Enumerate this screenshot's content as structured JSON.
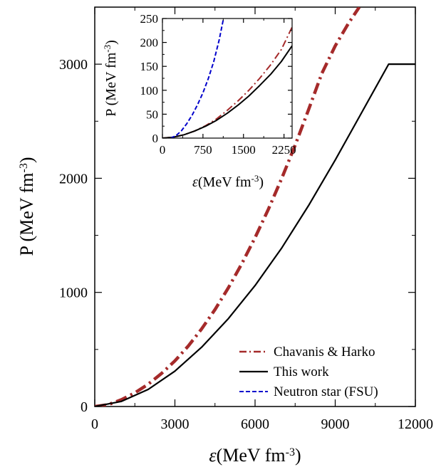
{
  "chart_data": [
    {
      "id": "main",
      "type": "line",
      "xlabel": "ε(MeV fm⁻³)",
      "ylabel": "P (MeV fm⁻³)",
      "xlim": [
        0,
        12000
      ],
      "ylim": [
        0,
        3500
      ],
      "xticks": [
        0,
        3000,
        6000,
        9000,
        12000
      ],
      "yticks": [
        0,
        1000,
        2000,
        3000
      ],
      "grid": false,
      "legend_position": "bottom-right",
      "series": [
        {
          "name": "Chavanis & Harko",
          "color": "#a52a2a",
          "style": "dash-dot-thick",
          "x": [
            0,
            500,
            1000,
            1500,
            2000,
            2500,
            3000,
            3500,
            4000,
            4500,
            5000,
            5500,
            6000,
            6500,
            7000,
            7500,
            8000,
            8500,
            9000,
            9500,
            9900
          ],
          "y": [
            0,
            16,
            60,
            120,
            195,
            290,
            400,
            530,
            680,
            850,
            1040,
            1250,
            1480,
            1730,
            2000,
            2290,
            2600,
            2920,
            3160,
            3360,
            3500
          ]
        },
        {
          "name": "This work",
          "color": "#000000",
          "style": "solid",
          "x": [
            0,
            1000,
            2000,
            3000,
            4000,
            5000,
            6000,
            7000,
            8000,
            9000,
            10000,
            11000,
            12000
          ],
          "y": [
            0,
            45,
            150,
            310,
            520,
            770,
            1060,
            1390,
            1760,
            2160,
            2580,
            3000,
            3000
          ]
        },
        {
          "name": "Neutron star (FSU)",
          "color": "#0000cc",
          "style": "dashed",
          "x": [],
          "y": []
        }
      ]
    },
    {
      "id": "inset",
      "type": "line",
      "xlabel": "ε(MeV fm⁻³)",
      "ylabel": "P (MeV fm⁻³)",
      "xlim": [
        0,
        2400
      ],
      "ylim": [
        0,
        250
      ],
      "xticks": [
        0,
        750,
        1500,
        2250
      ],
      "yticks": [
        0,
        50,
        100,
        150,
        200,
        250
      ],
      "grid": false,
      "series": [
        {
          "name": "Chavanis & Harko",
          "color": "#a52a2a",
          "style": "dash-dot",
          "x": [
            0,
            200,
            400,
            600,
            800,
            1000,
            1200,
            1400,
            1600,
            1800,
            2000,
            2200,
            2400
          ],
          "y": [
            0,
            2,
            7,
            15,
            26,
            40,
            58,
            78,
            100,
            125,
            153,
            185,
            232
          ]
        },
        {
          "name": "This work",
          "color": "#000000",
          "style": "solid",
          "x": [
            0,
            200,
            400,
            600,
            800,
            1000,
            1200,
            1400,
            1600,
            1800,
            2000,
            2200,
            2400
          ],
          "y": [
            0,
            2,
            7,
            15,
            25,
            37,
            52,
            69,
            88,
            110,
            133,
            160,
            193
          ]
        },
        {
          "name": "Neutron star (FSU)",
          "color": "#0000cc",
          "style": "dashed",
          "x": [
            150,
            250,
            350,
            450,
            550,
            650,
            750,
            850,
            950,
            1050,
            1130
          ],
          "y": [
            0,
            5,
            15,
            30,
            48,
            70,
            95,
            125,
            160,
            205,
            250
          ]
        }
      ]
    }
  ]
}
